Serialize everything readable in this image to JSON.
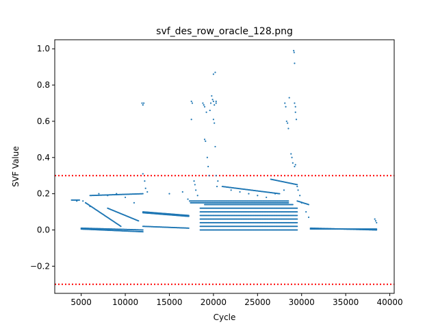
{
  "chart_data": {
    "type": "scatter",
    "title": "svf_des_row_oracle_128.png",
    "xlabel": "Cycle",
    "ylabel": "SVF Value",
    "xlim": [
      2000,
      40500
    ],
    "ylim": [
      -0.35,
      1.05
    ],
    "x_ticks": [
      5000,
      10000,
      15000,
      20000,
      25000,
      30000,
      35000,
      40000
    ],
    "y_ticks": [
      -0.2,
      0.0,
      0.2,
      0.4,
      0.6,
      0.8,
      1.0
    ],
    "x_tick_labels": [
      "5000",
      "10000",
      "15000",
      "20000",
      "25000",
      "30000",
      "35000",
      "40000"
    ],
    "y_tick_labels": [
      "−0.2",
      "0.0",
      "0.2",
      "0.4",
      "0.6",
      "0.8",
      "1.0"
    ],
    "grid": false,
    "marker_color": "#1f77b4",
    "threshold_color": "#ff0000",
    "thresholds": [
      0.3,
      -0.3
    ],
    "segments": [
      {
        "x": [
          3900,
          4800
        ],
        "y": [
          0.165,
          0.165
        ]
      },
      {
        "x": [
          5000,
          12000
        ],
        "y": [
          0.005,
          -0.01
        ]
      },
      {
        "x": [
          5000,
          12000
        ],
        "y": [
          0.01,
          0.0
        ]
      },
      {
        "x": [
          12000,
          17200
        ],
        "y": [
          0.1,
          0.08
        ]
      },
      {
        "x": [
          12000,
          17200
        ],
        "y": [
          0.095,
          0.075
        ]
      },
      {
        "x": [
          12000,
          17200
        ],
        "y": [
          0.02,
          0.01
        ]
      },
      {
        "x": [
          17400,
          28500
        ],
        "y": [
          0.16,
          0.16
        ]
      },
      {
        "x": [
          17400,
          28500
        ],
        "y": [
          0.15,
          0.15
        ]
      },
      {
        "x": [
          19000,
          29000
        ],
        "y": [
          0.14,
          0.14
        ]
      },
      {
        "x": [
          18500,
          29500
        ],
        "y": [
          0.12,
          0.12
        ]
      },
      {
        "x": [
          18500,
          29500
        ],
        "y": [
          0.1,
          0.1
        ]
      },
      {
        "x": [
          18500,
          29500
        ],
        "y": [
          0.08,
          0.08
        ]
      },
      {
        "x": [
          18500,
          29500
        ],
        "y": [
          0.06,
          0.06
        ]
      },
      {
        "x": [
          18500,
          29500
        ],
        "y": [
          0.04,
          0.04
        ]
      },
      {
        "x": [
          18500,
          29500
        ],
        "y": [
          0.02,
          0.02
        ]
      },
      {
        "x": [
          18500,
          29500
        ],
        "y": [
          0.0,
          0.0
        ]
      },
      {
        "x": [
          29500,
          30800
        ],
        "y": [
          0.16,
          0.14
        ]
      },
      {
        "x": [
          31000,
          38500
        ],
        "y": [
          0.01,
          0.0
        ]
      },
      {
        "x": [
          31000,
          38500
        ],
        "y": [
          0.005,
          0.005
        ]
      },
      {
        "x": [
          21000,
          27500
        ],
        "y": [
          0.24,
          0.2
        ]
      },
      {
        "x": [
          26500,
          29500
        ],
        "y": [
          0.28,
          0.25
        ]
      },
      {
        "x": [
          6000,
          12000
        ],
        "y": [
          0.19,
          0.2
        ]
      },
      {
        "x": [
          5500,
          9500
        ],
        "y": [
          0.15,
          0.02
        ]
      },
      {
        "x": [
          8000,
          11500
        ],
        "y": [
          0.12,
          0.05
        ]
      }
    ],
    "points": [
      [
        11900,
        0.7
      ],
      [
        12000,
        0.69
      ],
      [
        12100,
        0.7
      ],
      [
        12000,
        0.31
      ],
      [
        12200,
        0.27
      ],
      [
        12300,
        0.23
      ],
      [
        12500,
        0.21
      ],
      [
        15000,
        0.2
      ],
      [
        16500,
        0.21
      ],
      [
        17100,
        0.17
      ],
      [
        17300,
        0.16
      ],
      [
        17500,
        0.71
      ],
      [
        17600,
        0.7
      ],
      [
        17500,
        0.61
      ],
      [
        17800,
        0.27
      ],
      [
        17900,
        0.25
      ],
      [
        18000,
        0.22
      ],
      [
        18200,
        0.19
      ],
      [
        18800,
        0.7
      ],
      [
        18900,
        0.69
      ],
      [
        19000,
        0.68
      ],
      [
        19000,
        0.5
      ],
      [
        19100,
        0.49
      ],
      [
        19200,
        0.65
      ],
      [
        19300,
        0.4
      ],
      [
        19400,
        0.35
      ],
      [
        19500,
        0.3
      ],
      [
        19600,
        0.66
      ],
      [
        19700,
        0.7
      ],
      [
        19800,
        0.74
      ],
      [
        19900,
        0.72
      ],
      [
        20000,
        0.86
      ],
      [
        20200,
        0.87
      ],
      [
        20000,
        0.71
      ],
      [
        20100,
        0.69
      ],
      [
        20300,
        0.71
      ],
      [
        20300,
        0.7
      ],
      [
        20000,
        0.61
      ],
      [
        20100,
        0.59
      ],
      [
        20200,
        0.46
      ],
      [
        20300,
        0.3
      ],
      [
        20500,
        0.27
      ],
      [
        20400,
        0.24
      ],
      [
        28100,
        0.7
      ],
      [
        28200,
        0.68
      ],
      [
        28300,
        0.6
      ],
      [
        28400,
        0.59
      ],
      [
        28500,
        0.56
      ],
      [
        28600,
        0.73
      ],
      [
        28800,
        0.42
      ],
      [
        28900,
        0.4
      ],
      [
        29000,
        0.37
      ],
      [
        29100,
        0.99
      ],
      [
        29150,
        0.98
      ],
      [
        29200,
        0.92
      ],
      [
        29200,
        0.7
      ],
      [
        29300,
        0.68
      ],
      [
        29300,
        0.65
      ],
      [
        29400,
        0.61
      ],
      [
        29300,
        0.36
      ],
      [
        29200,
        0.35
      ],
      [
        29500,
        0.24
      ],
      [
        29600,
        0.22
      ],
      [
        29800,
        0.19
      ],
      [
        30000,
        0.15
      ],
      [
        30500,
        0.1
      ],
      [
        30800,
        0.07
      ],
      [
        38300,
        0.06
      ],
      [
        38400,
        0.05
      ],
      [
        38500,
        0.04
      ],
      [
        4500,
        0.16
      ],
      [
        5200,
        0.16
      ],
      [
        5500,
        0.15
      ],
      [
        6000,
        0.13
      ],
      [
        7000,
        0.2
      ],
      [
        8000,
        0.19
      ],
      [
        9000,
        0.2
      ],
      [
        10000,
        0.18
      ],
      [
        11000,
        0.15
      ],
      [
        22000,
        0.22
      ],
      [
        23000,
        0.21
      ],
      [
        24000,
        0.2
      ],
      [
        25000,
        0.19
      ],
      [
        26000,
        0.18
      ],
      [
        27000,
        0.2
      ],
      [
        28000,
        0.22
      ]
    ]
  }
}
